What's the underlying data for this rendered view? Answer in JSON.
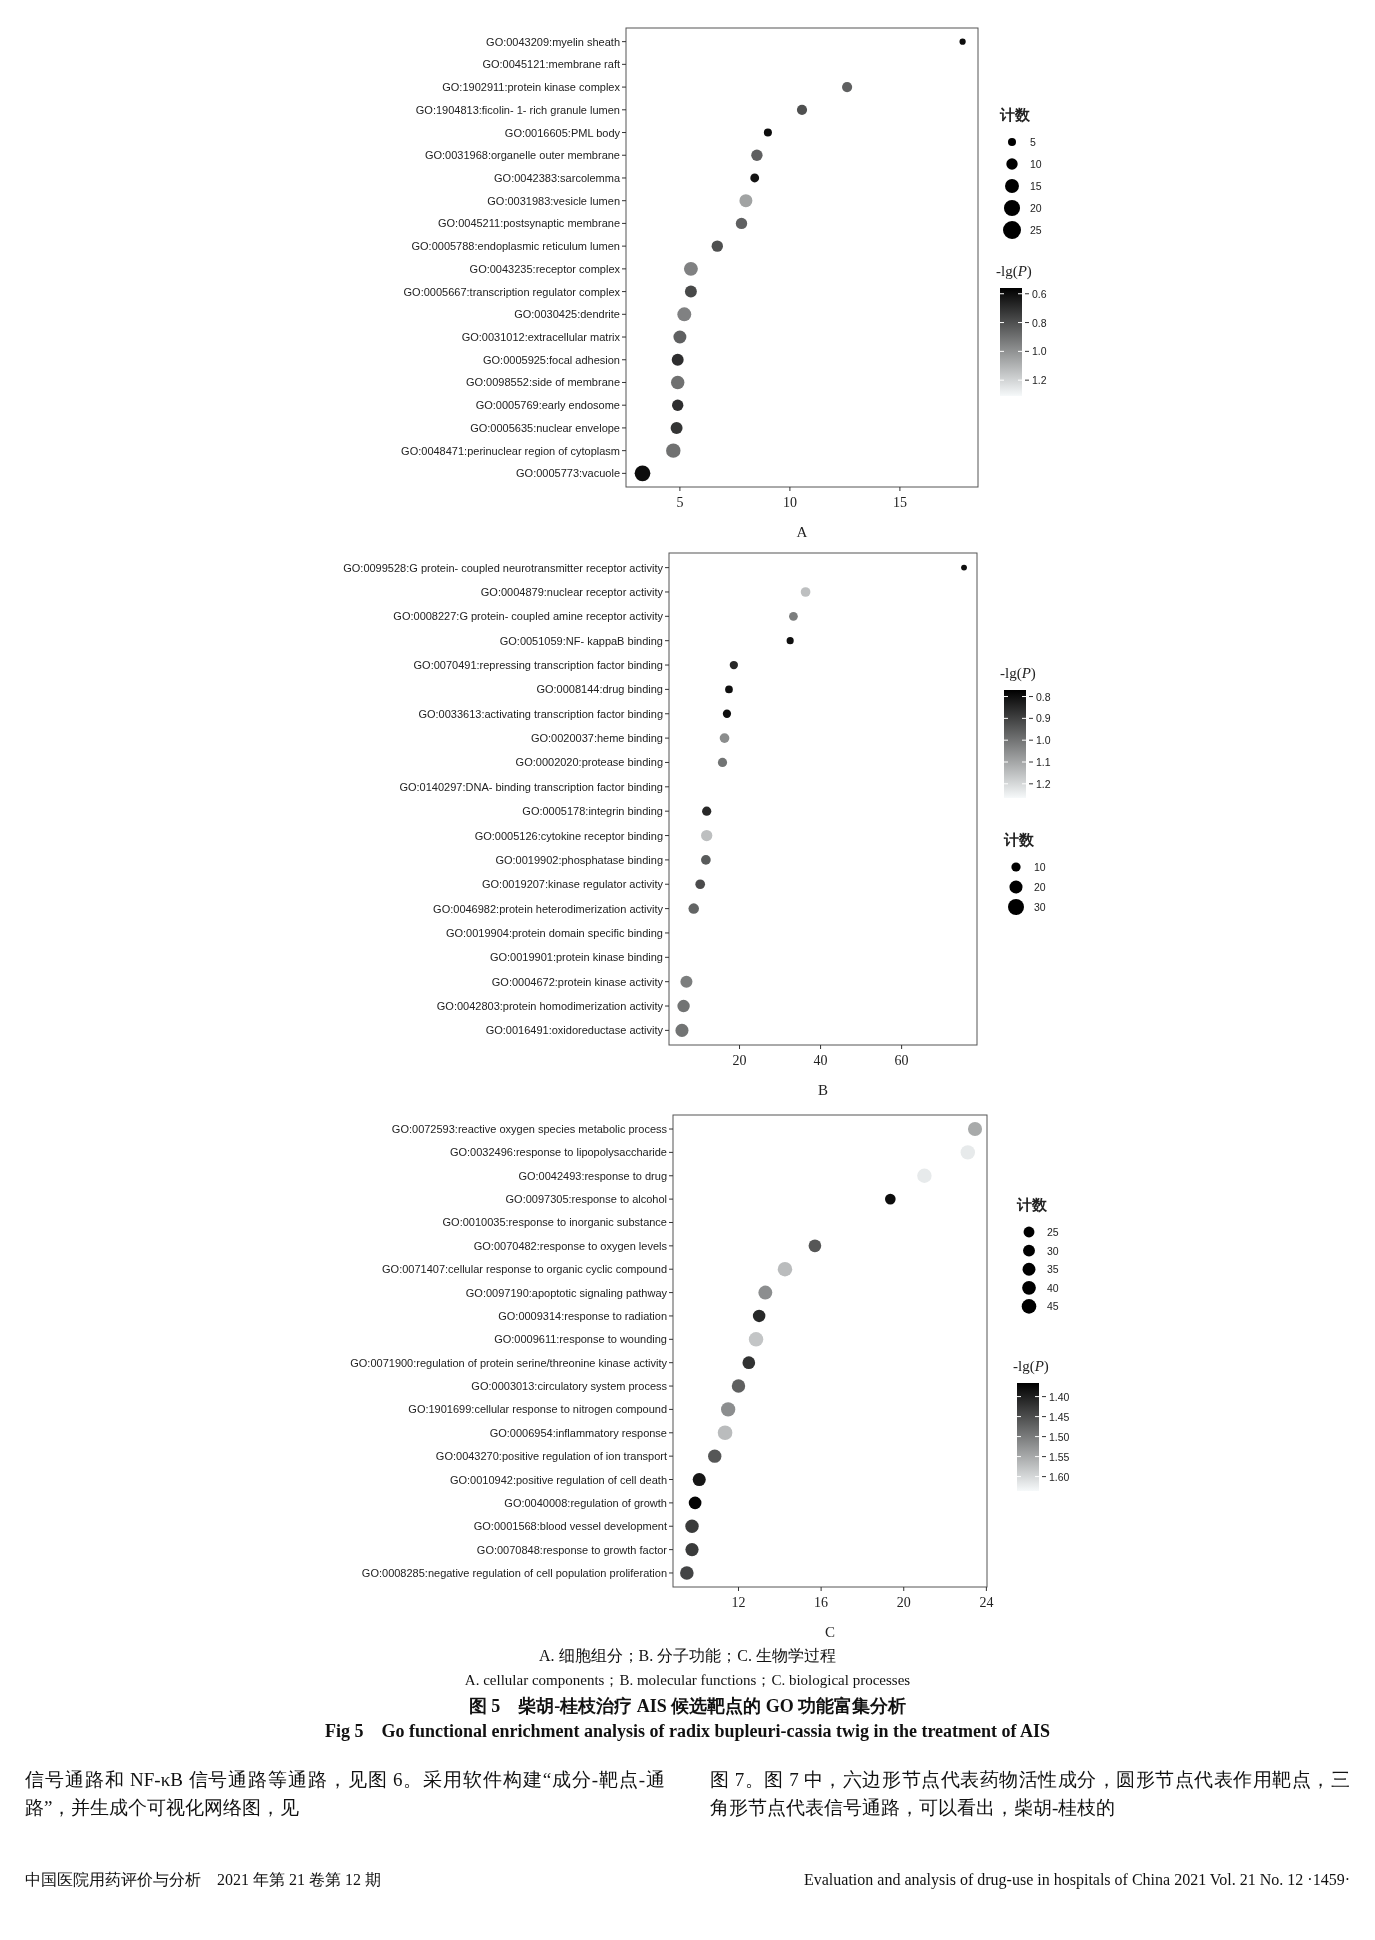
{
  "chart_data": [
    {
      "type": "bubble",
      "orientation": "horizontal",
      "xlabel": "A",
      "legend_title": "计数",
      "clabel": "-lg(*P*)",
      "categories": [
        "GO:0043209:myelin sheath",
        "GO:0045121:membrane raft",
        "GO:1902911:protein kinase complex",
        "GO:1904813:ficolin- 1- rich granule lumen",
        "GO:0016605:PML body",
        "GO:0031968:organelle outer membrane",
        "GO:0042383:sarcolemma",
        "GO:0031983:vesicle lumen",
        "GO:0045211:postsynaptic membrane",
        "GO:0005788:endoplasmic reticulum lumen",
        "GO:0043235:receptor complex",
        "GO:0005667:transcription regulator complex",
        "GO:0030425:dendrite",
        "GO:0031012:extracellular matrix",
        "GO:0005925:focal adhesion",
        "GO:0098552:side of membrane",
        "GO:0005769:early endosome",
        "GO:0005635:nuclear envelope",
        "GO:0048471:perinuclear region of cytoplasm",
        "GO:0005773:vacuole"
      ],
      "values": [
        17.85,
        null,
        12.6,
        10.55,
        9.0,
        8.5,
        8.4,
        8.0,
        7.8,
        6.7,
        5.5,
        5.5,
        5.2,
        5.0,
        4.9,
        4.9,
        4.9,
        4.85,
        4.7,
        3.3
      ],
      "sizes": [
        3,
        null,
        8,
        8,
        5,
        10,
        6,
        13,
        10,
        10,
        15,
        11,
        15,
        13,
        11,
        14,
        10,
        11,
        16,
        19
      ],
      "cvalues": [
        0.6,
        null,
        0.85,
        0.8,
        0.6,
        0.85,
        0.62,
        1.05,
        0.85,
        0.8,
        0.95,
        0.78,
        0.95,
        0.85,
        0.7,
        0.9,
        0.7,
        0.72,
        0.9,
        0.6
      ],
      "xlim": [
        2.55,
        18.55
      ],
      "xticks": [
        5,
        10,
        15
      ],
      "size_legend": [
        5,
        10,
        15,
        20,
        25
      ],
      "clim": [
        0.56,
        1.31
      ],
      "cticks": [
        0.6,
        0.8,
        {
          "value": 1,
          "label": "1.0"
        },
        1.2
      ]
    },
    {
      "type": "bubble",
      "orientation": "horizontal",
      "xlabel": "B",
      "legend_title": "计数",
      "clabel": "-lg(*P*)",
      "categories": [
        "GO:0099528:G protein- coupled neurotransmitter receptor activity",
        "GO:0004879:nuclear receptor activity",
        "GO:0008227:G protein- coupled amine receptor activity",
        "GO:0051059:NF- kappaB binding",
        "GO:0070491:repressing transcription factor binding",
        "GO:0008144:drug binding",
        "GO:0033613:activating transcription factor binding",
        "GO:0020037:heme binding",
        "GO:0002020:protease binding",
        "GO:0140297:DNA- binding transcription factor binding",
        "GO:0005178:integrin binding",
        "GO:0005126:cytokine receptor binding",
        "GO:0019902:phosphatase binding",
        "GO:0019207:kinase regulator activity",
        "GO:0046982:protein heterodimerization activity",
        "GO:0019904:protein domain specific binding",
        "GO:0019901:protein kinase binding",
        "GO:0004672:protein kinase activity",
        "GO:0042803:protein homodimerization activity",
        "GO:0016491:oxidoreductase activity"
      ],
      "values": [
        75.4,
        36.3,
        33.3,
        32.5,
        18.6,
        17.4,
        16.9,
        16.3,
        15.8,
        null,
        11.9,
        11.9,
        11.7,
        10.3,
        8.7,
        null,
        null,
        6.9,
        6.2,
        5.8
      ],
      "sizes": [
        4,
        11,
        9,
        6,
        8,
        7,
        8,
        11,
        10,
        null,
        10,
        15,
        11,
        11,
        13,
        null,
        null,
        17,
        18,
        20
      ],
      "cvalues": [
        0.8,
        1.15,
        1.02,
        0.8,
        0.85,
        0.8,
        0.8,
        1.05,
        1.0,
        null,
        0.85,
        1.15,
        0.95,
        0.92,
        0.97,
        null,
        null,
        1.02,
        1.0,
        1.0
      ],
      "xlim": [
        2.6,
        78.6
      ],
      "xticks": [
        20,
        40,
        60
      ],
      "size_legend": [
        10,
        20,
        30
      ],
      "clim": [
        0.77,
        1.265
      ],
      "cticks": [
        0.8,
        0.9,
        {
          "value": 1,
          "label": "1.0"
        },
        1.1,
        1.2
      ]
    },
    {
      "type": "bubble",
      "orientation": "horizontal",
      "xlabel": "C",
      "legend_title": "计数",
      "clabel": "-lg(*P*)",
      "categories": [
        "GO:0072593:reactive oxygen species metabolic process",
        "GO:0032496:response to lipopolysaccharide",
        "GO:0042493:response to drug",
        "GO:0097305:response to alcohol",
        "GO:0010035:response to inorganic substance",
        "GO:0070482:response to oxygen levels",
        "GO:0071407:cellular response to organic cyclic compound",
        "GO:0097190:apoptotic signaling pathway",
        "GO:0009314:response to radiation",
        "GO:0009611:response to wounding",
        "GO:0071900:regulation of protein serine/threonine kinase activity",
        "GO:0003013:circulatory system process",
        "GO:1901699:cellular response to nitrogen compound",
        "GO:0006954:inflammatory response",
        "GO:0043270:positive regulation of ion transport",
        "GO:0010942:positive regulation of cell death",
        "GO:0040008:regulation of growth",
        "GO:0001568:blood vessel development",
        "GO:0070848:response to growth factor",
        "GO:0008285:negative regulation of cell population proliferation"
      ],
      "values": [
        23.45,
        23.1,
        21.0,
        19.35,
        null,
        15.7,
        14.25,
        13.3,
        13.0,
        12.85,
        12.5,
        12.0,
        11.5,
        11.35,
        10.85,
        10.1,
        9.9,
        9.75,
        9.75,
        9.5
      ],
      "sizes": [
        42,
        44,
        44,
        24,
        null,
        34,
        44,
        41,
        33,
        44,
        34,
        38,
        43,
        45,
        38,
        36,
        34,
        38,
        37,
        39
      ],
      "cvalues": [
        1.55,
        1.62,
        1.62,
        1.38,
        null,
        1.46,
        1.57,
        1.52,
        1.41,
        1.58,
        1.42,
        1.47,
        1.52,
        1.57,
        1.46,
        1.39,
        1.37,
        1.43,
        1.43,
        1.44
      ],
      "xlim": [
        8.83,
        24.03
      ],
      "xticks": [
        12,
        16,
        20,
        24
      ],
      "size_legend": [
        25,
        30,
        35,
        40,
        45
      ],
      "clim": [
        1.366,
        1.636
      ],
      "cticks": [
        {
          "value": 1.4,
          "label": "1.40"
        },
        1.45,
        {
          "value": 1.5,
          "label": "1.50"
        },
        1.55,
        {
          "value": 1.6,
          "label": "1.60"
        }
      ],
      "annotations": [
        "A. 细胞组分；B. 分子功能；C. 生物学过程",
        "A. cellular components；B. molecular functions；C. biological processes",
        "图 5　柴胡-桂枝治疗 AIS 候选靶点的 GO 功能富集分析",
        "Fig 5　Go functional enrichment analysis of radix bupleuri-cassia twig in the treatment of AIS",
        "信号通路和 NF-κB 信号通路等通路，见图 6。采用软件构建“成分-靶点-通路”，并生成个可视化网络图，见",
        "图 7。图 7 中，六边形节点代表药物活性成分，圆形节点代表作用靶点，三角形节点代表信号通路，可以看出，柴胡-桂枝的",
        "中国医院用药评价与分析　2021 年第 21 卷第 12 期",
        "Evaluation and analysis of drug-use in hospitals of China 2021 Vol. 21 No. 12 ·1459·"
      ]
    }
  ]
}
